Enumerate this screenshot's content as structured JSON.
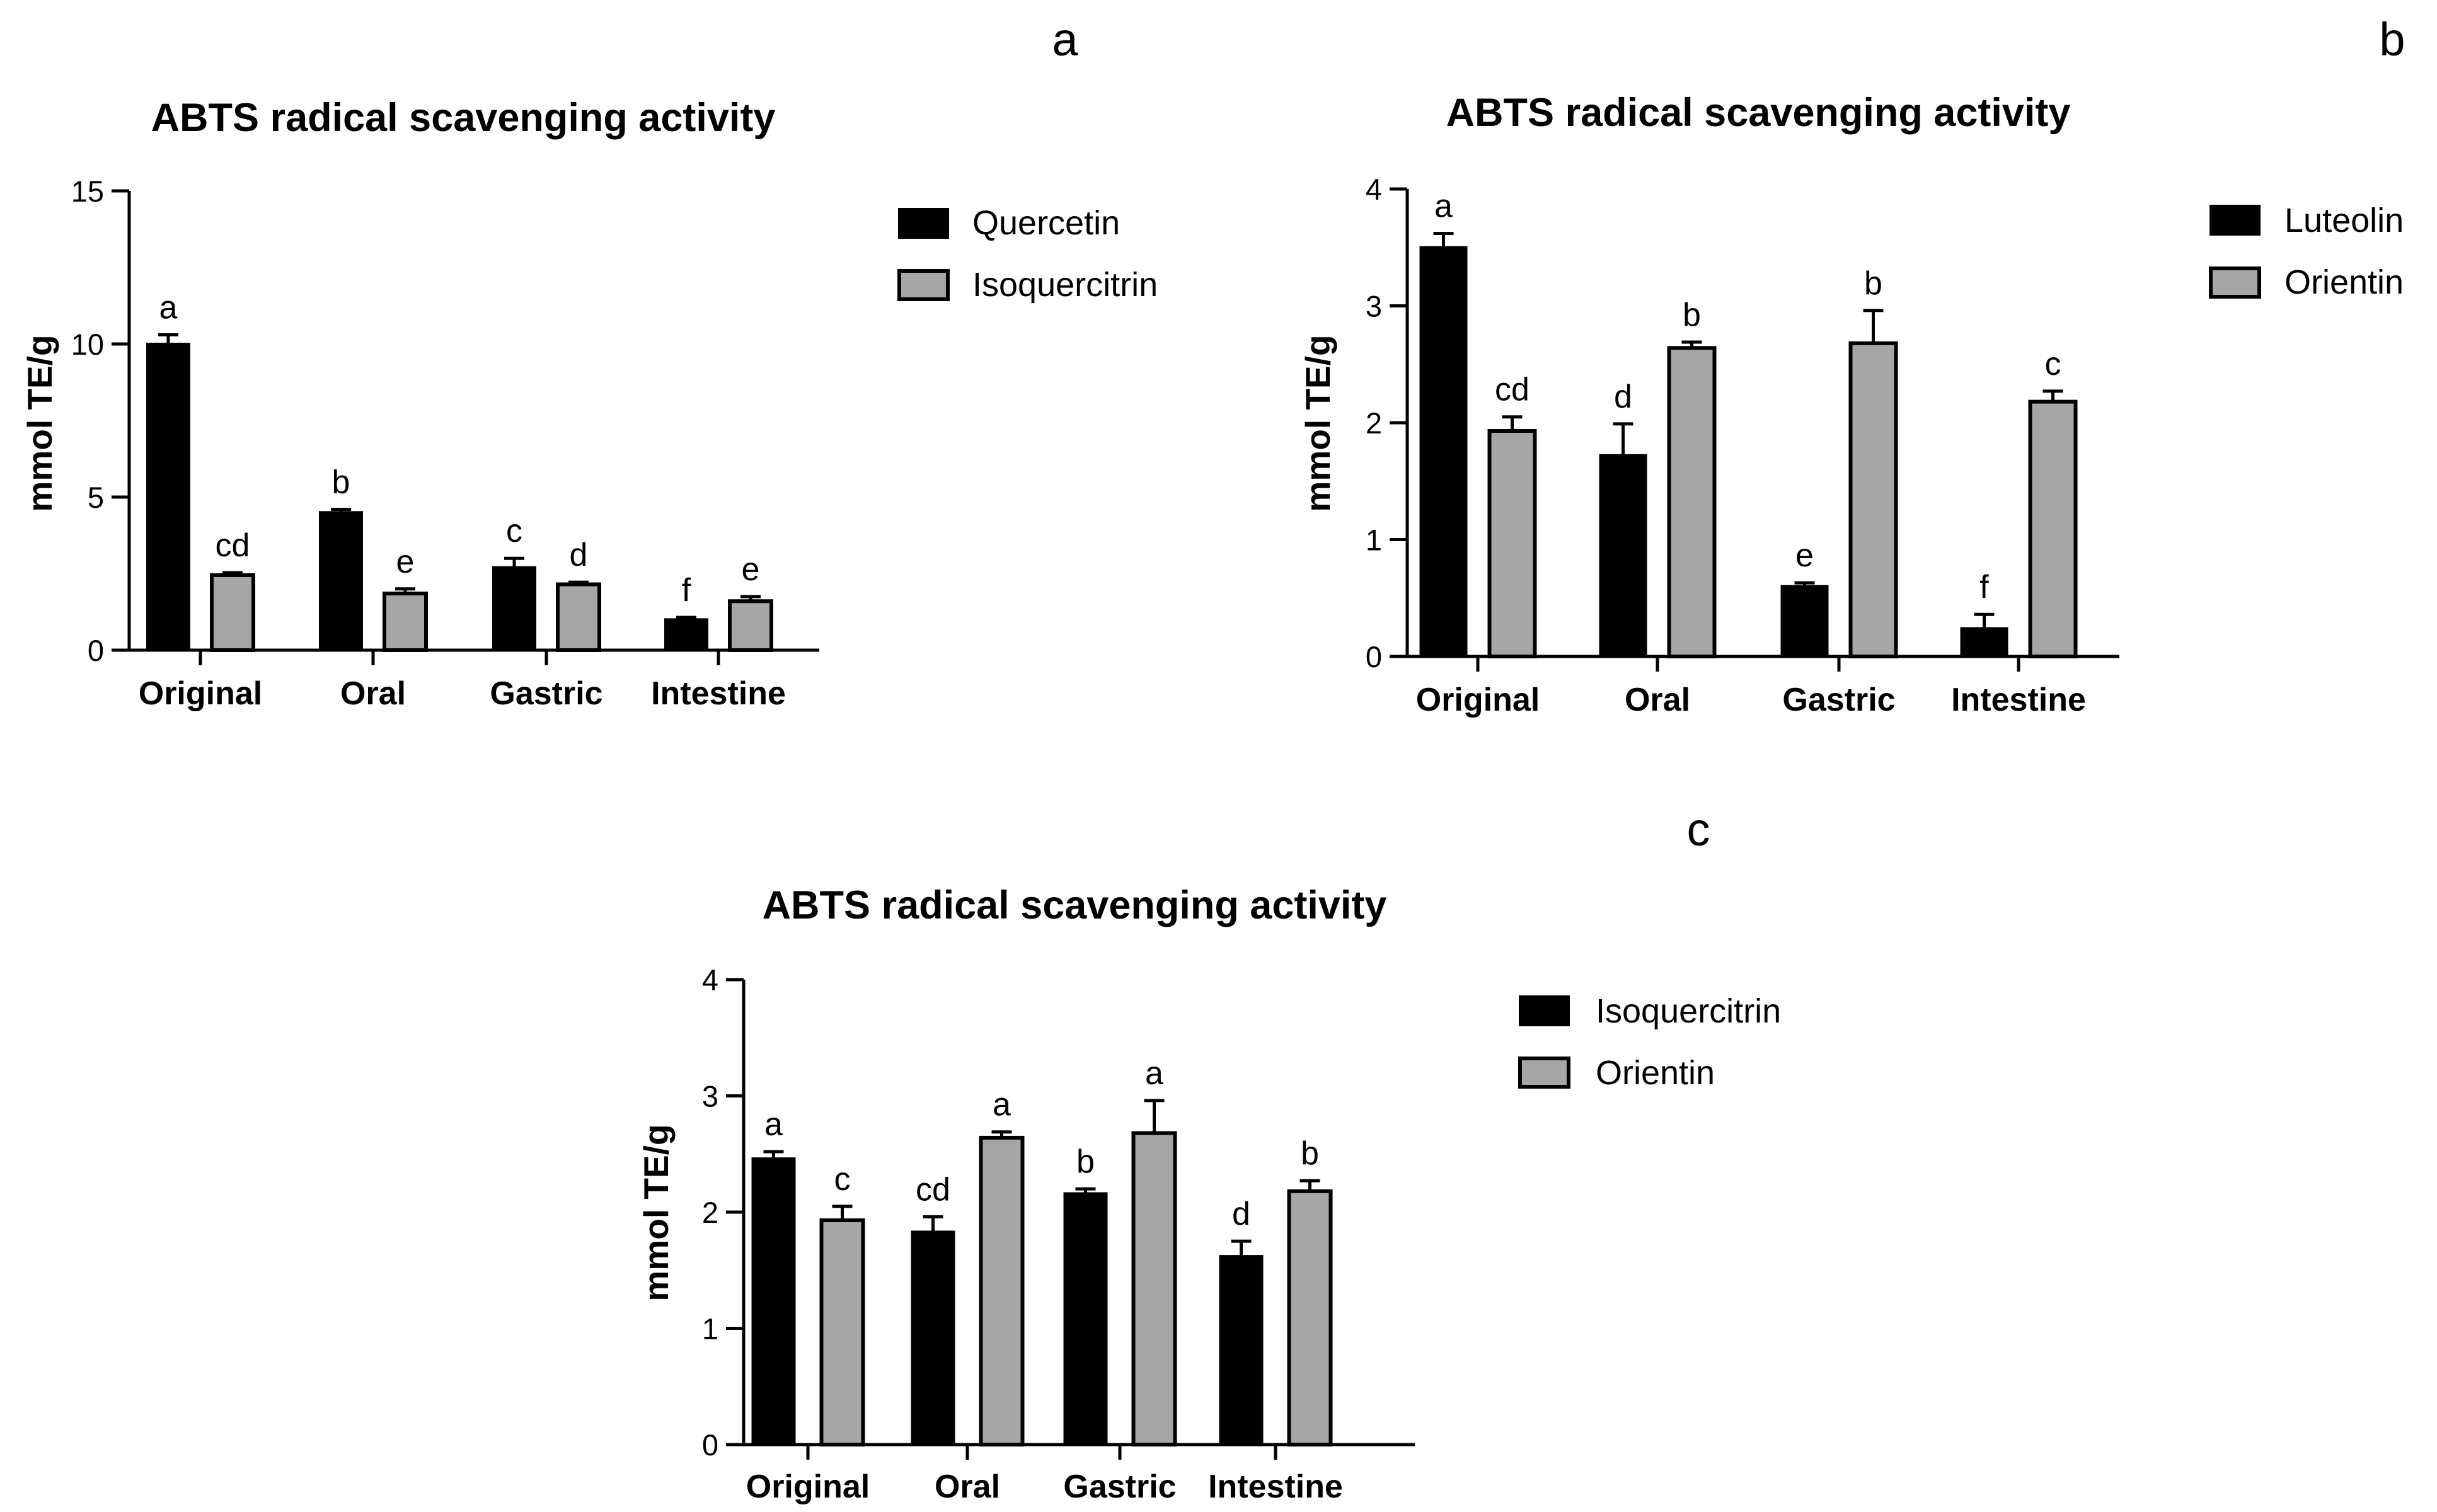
{
  "chart_data": [
    {
      "panel": "a",
      "type": "bar",
      "title": "ABTS radical scavenging activity",
      "xlabel": "",
      "ylabel": "mmol TE/g",
      "ylim": [
        0,
        15
      ],
      "yticks": [
        0,
        5,
        10,
        15
      ],
      "grid": false,
      "legend_position": "right",
      "categories": [
        "Original",
        "Oral",
        "Gastric",
        "Intestine"
      ],
      "series": [
        {
          "name": "Quercetin",
          "color": "#000000",
          "values": [
            10.0,
            4.5,
            2.7,
            1.0
          ],
          "errors": [
            0.3,
            0.1,
            0.3,
            0.07
          ],
          "labels": [
            "a",
            "b",
            "c",
            "f"
          ]
        },
        {
          "name": "Isoquercitrin",
          "color": "#a6a6a6",
          "values": [
            2.45,
            1.85,
            2.15,
            1.6
          ],
          "errors": [
            0.08,
            0.15,
            0.07,
            0.15
          ],
          "labels": [
            "cd",
            "e",
            "d",
            "e"
          ]
        }
      ]
    },
    {
      "panel": "b",
      "type": "bar",
      "title": "ABTS radical scavenging activity",
      "xlabel": "",
      "ylabel": "mmol TE/g",
      "ylim": [
        0,
        4
      ],
      "yticks": [
        0,
        1,
        2,
        3,
        4
      ],
      "grid": false,
      "legend_position": "right",
      "categories": [
        "Original",
        "Oral",
        "Gastric",
        "Intestine"
      ],
      "series": [
        {
          "name": "Luteolin",
          "color": "#000000",
          "values": [
            3.5,
            1.72,
            0.6,
            0.24
          ],
          "errors": [
            0.12,
            0.27,
            0.03,
            0.12
          ],
          "labels": [
            "a",
            "d",
            "e",
            "f"
          ]
        },
        {
          "name": "Orientin",
          "color": "#a6a6a6",
          "values": [
            1.93,
            2.64,
            2.68,
            2.18
          ],
          "errors": [
            0.12,
            0.05,
            0.28,
            0.09
          ],
          "labels": [
            "cd",
            "b",
            "b",
            "c"
          ]
        }
      ]
    },
    {
      "panel": "c",
      "type": "bar",
      "title": "ABTS radical scavenging activity",
      "xlabel": "",
      "ylabel": "mmol TE/g",
      "ylim": [
        0,
        4
      ],
      "yticks": [
        0,
        1,
        2,
        3,
        4
      ],
      "grid": false,
      "legend_position": "right",
      "categories": [
        "Original",
        "Oral",
        "Gastric",
        "Intestine"
      ],
      "series": [
        {
          "name": "Isoquercitrin",
          "color": "#000000",
          "values": [
            2.46,
            1.83,
            2.16,
            1.62
          ],
          "errors": [
            0.06,
            0.13,
            0.04,
            0.13
          ],
          "labels": [
            "a",
            "cd",
            "b",
            "d"
          ]
        },
        {
          "name": "Orientin",
          "color": "#a6a6a6",
          "values": [
            1.93,
            2.64,
            2.68,
            2.18
          ],
          "errors": [
            0.12,
            0.05,
            0.28,
            0.09
          ],
          "labels": [
            "c",
            "a",
            "a",
            "b"
          ]
        }
      ]
    }
  ]
}
